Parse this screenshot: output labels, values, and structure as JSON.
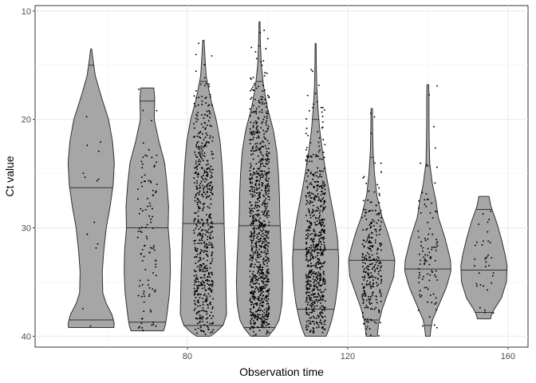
{
  "chart_data": {
    "type": "violin",
    "title": "",
    "xlabel": "Observation time",
    "ylabel": "Ct value",
    "x_ticks": [
      80,
      120,
      160
    ],
    "y_ticks": [
      10,
      20,
      30,
      40
    ],
    "xlim": [
      42,
      165
    ],
    "ylim": [
      41,
      9.5
    ],
    "y_reversed": true,
    "grid": true,
    "fill_color": "#a6a6a6",
    "outline_color": "#333333",
    "point_color": "#000000",
    "quantiles": [
      0.25,
      0.5,
      0.75
    ],
    "groups": [
      {
        "x": 56,
        "n": 14,
        "range": [
          13.5,
          39.2
        ],
        "quantiles": [
          15,
          26.3,
          38.5
        ],
        "profile": [
          [
            13.5,
            0.02
          ],
          [
            14.5,
            0.08
          ],
          [
            16,
            0.18
          ],
          [
            18,
            0.45
          ],
          [
            20,
            0.75
          ],
          [
            22,
            0.92
          ],
          [
            24,
            1.0
          ],
          [
            26,
            0.95
          ],
          [
            28,
            0.82
          ],
          [
            30,
            0.65
          ],
          [
            32,
            0.55
          ],
          [
            34,
            0.48
          ],
          [
            36,
            0.5
          ],
          [
            37,
            0.65
          ],
          [
            38,
            0.9
          ],
          [
            38.8,
            1.0
          ],
          [
            39.2,
            0.98
          ]
        ]
      },
      {
        "x": 70,
        "n": 110,
        "range": [
          17.1,
          39.5
        ],
        "quantiles": [
          18.3,
          30,
          38.7
        ],
        "profile": [
          [
            17.1,
            0.28
          ],
          [
            18,
            0.32
          ],
          [
            20,
            0.3
          ],
          [
            22,
            0.5
          ],
          [
            24,
            0.75
          ],
          [
            26,
            0.85
          ],
          [
            28,
            0.92
          ],
          [
            30,
            0.9
          ],
          [
            32,
            0.98
          ],
          [
            34,
            1.0
          ],
          [
            36,
            0.96
          ],
          [
            38,
            0.85
          ],
          [
            39,
            0.78
          ],
          [
            39.5,
            0.7
          ]
        ]
      },
      {
        "x": 84,
        "n": 600,
        "range": [
          12.7,
          40
        ],
        "quantiles": [
          16.5,
          29.6,
          39
        ],
        "profile": [
          [
            12.7,
            0.03
          ],
          [
            14,
            0.06
          ],
          [
            16,
            0.12
          ],
          [
            18,
            0.3
          ],
          [
            20,
            0.55
          ],
          [
            22,
            0.72
          ],
          [
            24,
            0.8
          ],
          [
            26,
            0.85
          ],
          [
            28,
            0.88
          ],
          [
            30,
            0.9
          ],
          [
            32,
            0.93
          ],
          [
            34,
            0.96
          ],
          [
            36,
            0.98
          ],
          [
            38,
            1.0
          ],
          [
            39,
            0.85
          ],
          [
            39.7,
            0.5
          ],
          [
            40,
            0.3
          ]
        ]
      },
      {
        "x": 98,
        "n": 900,
        "range": [
          11,
          40
        ],
        "quantiles": [
          16.5,
          29.8,
          39.2
        ],
        "profile": [
          [
            11,
            0.02
          ],
          [
            13,
            0.04
          ],
          [
            15,
            0.08
          ],
          [
            17,
            0.18
          ],
          [
            19,
            0.35
          ],
          [
            21,
            0.6
          ],
          [
            23,
            0.75
          ],
          [
            25,
            0.82
          ],
          [
            27,
            0.86
          ],
          [
            29,
            0.88
          ],
          [
            31,
            0.92
          ],
          [
            33,
            0.97
          ],
          [
            35,
            1.0
          ],
          [
            37,
            0.97
          ],
          [
            38.5,
            0.85
          ],
          [
            39.3,
            0.65
          ],
          [
            40,
            0.38
          ]
        ]
      },
      {
        "x": 112,
        "n": 650,
        "range": [
          13,
          40
        ],
        "quantiles": [
          20,
          32,
          37.5
        ],
        "profile": [
          [
            13,
            0.02
          ],
          [
            15,
            0.03
          ],
          [
            17,
            0.05
          ],
          [
            19,
            0.1
          ],
          [
            21,
            0.18
          ],
          [
            23,
            0.3
          ],
          [
            25,
            0.45
          ],
          [
            27,
            0.62
          ],
          [
            29,
            0.8
          ],
          [
            31,
            0.95
          ],
          [
            33,
            1.0
          ],
          [
            35,
            0.97
          ],
          [
            37,
            0.85
          ],
          [
            38.5,
            0.7
          ],
          [
            39.5,
            0.55
          ],
          [
            40,
            0.45
          ]
        ]
      },
      {
        "x": 126,
        "n": 280,
        "range": [
          19,
          40
        ],
        "quantiles": [
          23.5,
          33,
          38.5
        ],
        "profile": [
          [
            19,
            0.03
          ],
          [
            21,
            0.04
          ],
          [
            23,
            0.06
          ],
          [
            25,
            0.12
          ],
          [
            27,
            0.22
          ],
          [
            29,
            0.45
          ],
          [
            30.5,
            0.7
          ],
          [
            32,
            0.9
          ],
          [
            33,
            1.0
          ],
          [
            34.5,
            0.95
          ],
          [
            36,
            0.7
          ],
          [
            37.5,
            0.45
          ],
          [
            38.8,
            0.3
          ],
          [
            40,
            0.24
          ]
        ]
      },
      {
        "x": 140,
        "n": 100,
        "range": [
          16.8,
          40
        ],
        "quantiles": [
          24.3,
          33.8,
          39
        ],
        "profile": [
          [
            16.8,
            0.04
          ],
          [
            18,
            0.05
          ],
          [
            20,
            0.05
          ],
          [
            22,
            0.06
          ],
          [
            24,
            0.08
          ],
          [
            26,
            0.2
          ],
          [
            27.5,
            0.35
          ],
          [
            29,
            0.45
          ],
          [
            31,
            0.75
          ],
          [
            33,
            0.98
          ],
          [
            34,
            1.0
          ],
          [
            35.5,
            0.8
          ],
          [
            37,
            0.5
          ],
          [
            38.5,
            0.2
          ],
          [
            39.5,
            0.12
          ],
          [
            40,
            0.1
          ]
        ]
      },
      {
        "x": 154,
        "n": 35,
        "range": [
          27.1,
          38.4
        ],
        "quantiles": [
          28.3,
          33.9,
          37.8
        ],
        "profile": [
          [
            27.1,
            0.22
          ],
          [
            28,
            0.3
          ],
          [
            29.5,
            0.55
          ],
          [
            31,
            0.75
          ],
          [
            32.5,
            0.92
          ],
          [
            33.5,
            1.0
          ],
          [
            35,
            0.97
          ],
          [
            36.5,
            0.75
          ],
          [
            37.5,
            0.45
          ],
          [
            38,
            0.33
          ],
          [
            38.4,
            0.28
          ]
        ]
      }
    ]
  }
}
